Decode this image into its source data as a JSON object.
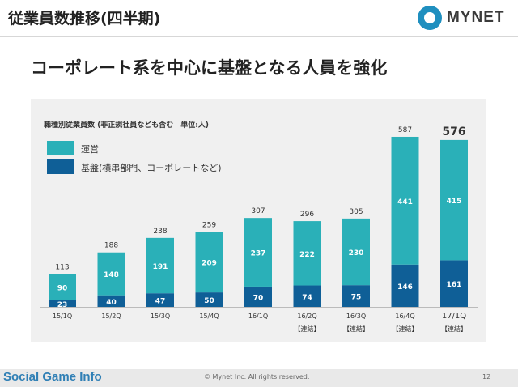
{
  "header": {
    "title": "従業員数推移(四半期)",
    "logo_text": "MYNET"
  },
  "subtitle": "コーポレート系を中心に基盤となる人員を強化",
  "chart_note": "職種別従業員数 (非正規社員なども含む　単位:人)",
  "legend": {
    "operations": "運営",
    "foundation": "基盤(横串部門、コーポレートなど)"
  },
  "colors": {
    "operations": "#2ab0b8",
    "foundation": "#0f5f97",
    "panel": "#f0f0f0"
  },
  "chart_data": {
    "type": "bar",
    "stacked": true,
    "categories": [
      "15/1Q",
      "15/2Q",
      "15/3Q",
      "15/4Q",
      "16/1Q",
      "16/2Q",
      "16/3Q",
      "16/4Q",
      "17/1Q"
    ],
    "category_notes": [
      "",
      "",
      "",
      "",
      "",
      "【連結】",
      "【連結】",
      "【連結】",
      "【連結】"
    ],
    "series": [
      {
        "name": "基盤(横串部門、コーポレートなど)",
        "values": [
          23,
          40,
          47,
          50,
          70,
          74,
          75,
          146,
          161
        ]
      },
      {
        "name": "運営",
        "values": [
          90,
          148,
          191,
          209,
          237,
          222,
          230,
          441,
          415
        ]
      }
    ],
    "totals": [
      113,
      188,
      238,
      259,
      307,
      296,
      305,
      587,
      576
    ],
    "highlight_index": 8,
    "ylim": [
      0,
      600
    ],
    "grid": false,
    "legend_position": "top-left"
  },
  "footer": {
    "source": "Social Game Info",
    "copyright": "© Mynet Inc. All rights reserved.",
    "page": "12"
  }
}
